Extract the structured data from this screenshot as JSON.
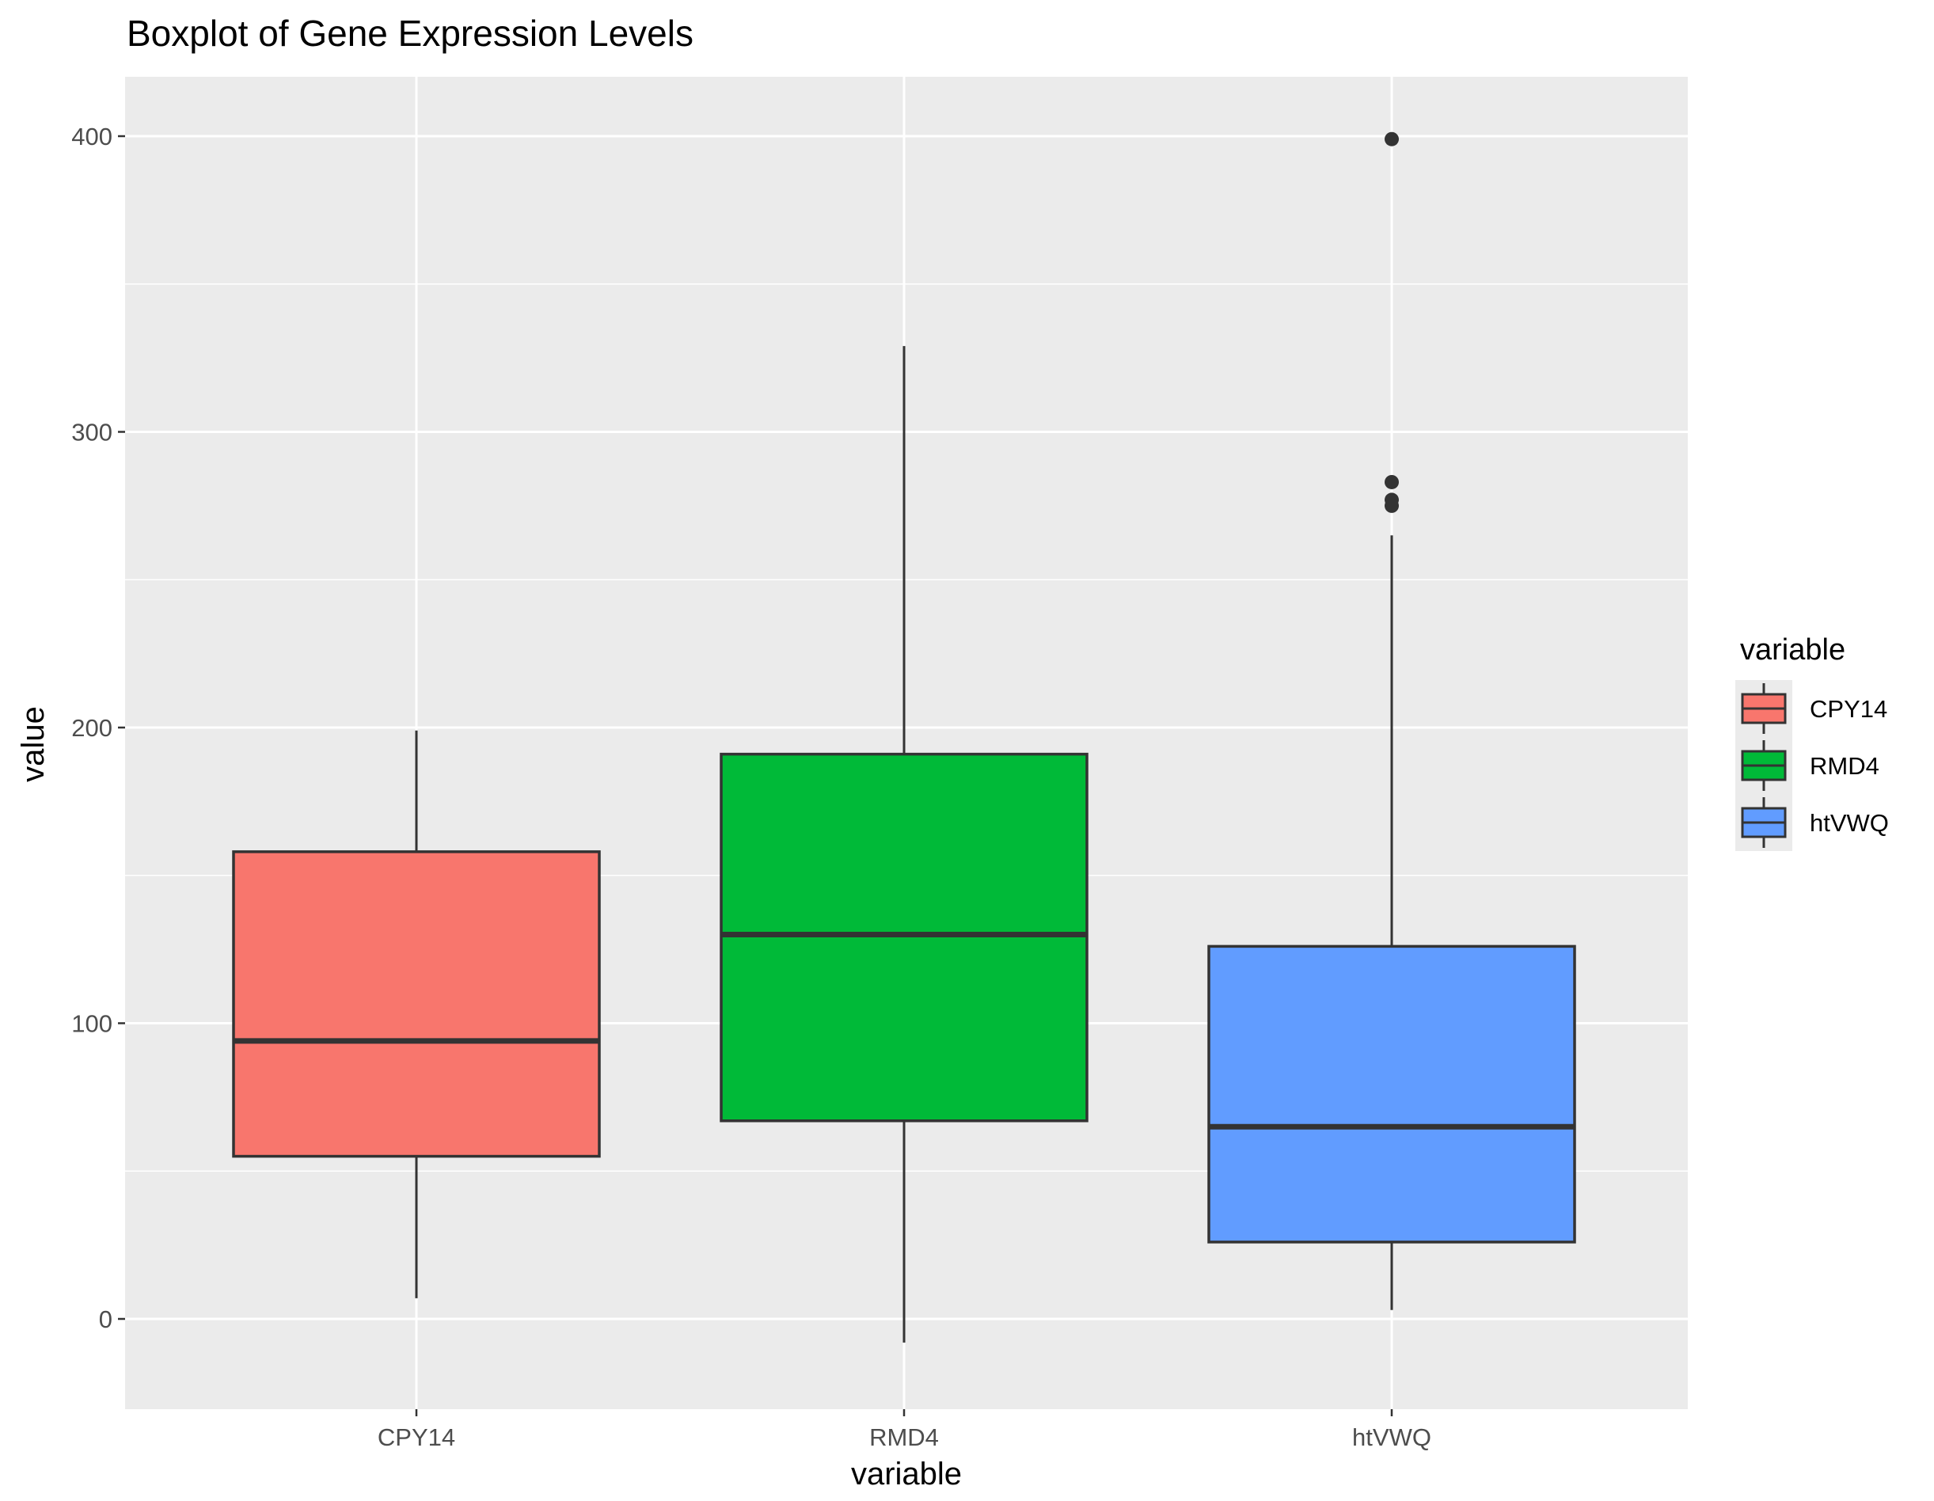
{
  "chart_data": {
    "type": "boxplot",
    "title": "Boxplot of Gene Expression Levels",
    "xlabel": "variable",
    "ylabel": "value",
    "ylim": [
      -30,
      420
    ],
    "y_ticks": [
      0,
      100,
      200,
      300,
      400
    ],
    "grid": true,
    "legend": {
      "title": "variable",
      "position": "right",
      "entries": [
        "CPY14",
        "RMD4",
        "htVWQ"
      ]
    },
    "categories": [
      "CPY14",
      "RMD4",
      "htVWQ"
    ],
    "series": [
      {
        "name": "CPY14",
        "color": "#F8766D",
        "whisker_low": 7,
        "q1": 55,
        "median": 94,
        "q3": 158,
        "whisker_high": 199,
        "outliers": []
      },
      {
        "name": "RMD4",
        "color": "#00BA38",
        "whisker_low": -8,
        "q1": 67,
        "median": 130,
        "q3": 191,
        "whisker_high": 329,
        "outliers": []
      },
      {
        "name": "htVWQ",
        "color": "#619CFF",
        "whisker_low": 3,
        "q1": 26,
        "median": 65,
        "q3": 126,
        "whisker_high": 265,
        "outliers": [
          399,
          283,
          277,
          275
        ]
      }
    ]
  },
  "colors": {
    "panel_background": "#EBEBEB",
    "grid_major": "#FFFFFF",
    "box_outline": "#333333"
  }
}
